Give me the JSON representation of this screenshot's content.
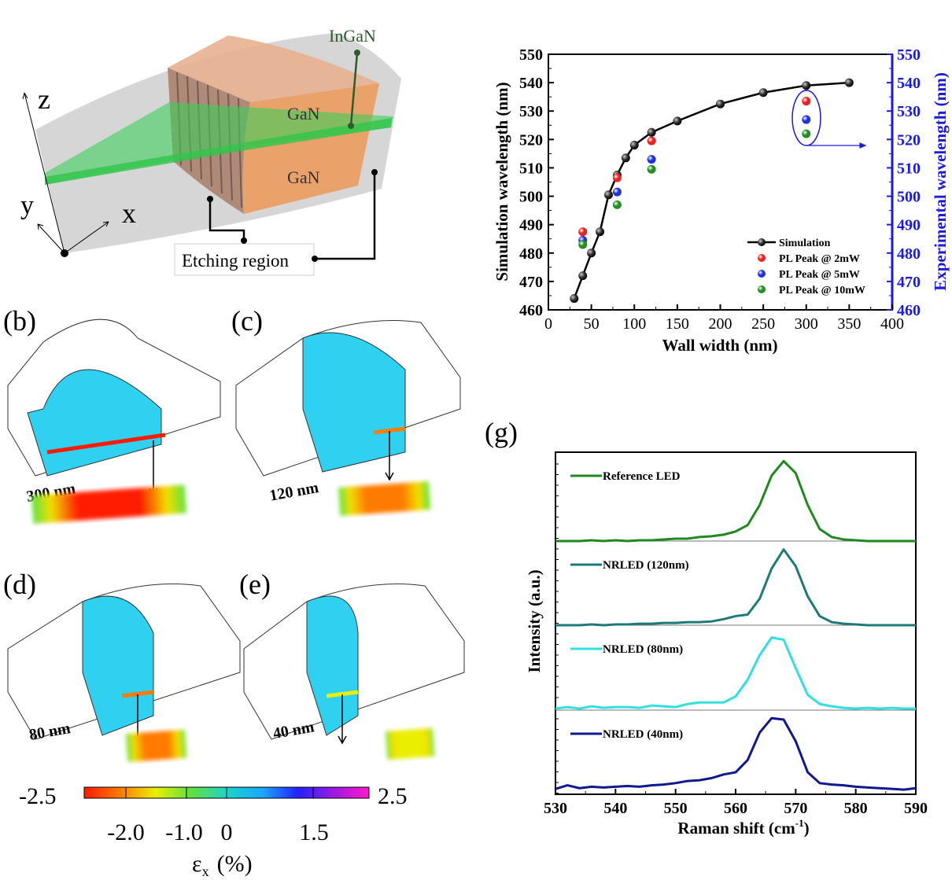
{
  "panel_a": {
    "labels": {
      "ingan": "InGaN",
      "gan_top": "GaN",
      "gan_bottom": "GaN",
      "etching": "Etching region",
      "axis_z": "z",
      "axis_y": "y",
      "axis_x": "x"
    },
    "colors": {
      "gan": "#e8a26a",
      "ingan": "#3ccf5a",
      "shell": "#c8c8c8"
    }
  },
  "panels_strain": [
    {
      "label": "(b)",
      "width": "300 nm",
      "strain_level": -2.3
    },
    {
      "label": "(c)",
      "width": "120 nm",
      "strain_level": -2.1
    },
    {
      "label": "(d)",
      "width": "80 nm",
      "strain_level": -1.9
    },
    {
      "label": "(e)",
      "width": "40 nm",
      "strain_level": -1.4
    }
  ],
  "colorbar": {
    "min_label": "-2.5",
    "max_label": "2.5",
    "ticks": [
      "-2.0",
      "-1.0",
      "0",
      "1.5"
    ],
    "title": "ε",
    "title_sub": "x",
    "title_unit": "(%)",
    "colors": [
      "#ff1a00",
      "#ff7a00",
      "#e8f000",
      "#60e040",
      "#1ad6c8",
      "#1aa8ff",
      "#2222ff",
      "#9a1ae0",
      "#ff1acc"
    ]
  },
  "chart_data": [
    {
      "type": "scatter",
      "panel_label": "",
      "xlabel": "Wall width (nm)",
      "ylabel": "Simulation wavelength (nm)",
      "y2label": "Experimental wavelength (nm)",
      "xlim": [
        0,
        400
      ],
      "ylim": [
        460,
        550
      ],
      "y2lim": [
        460,
        550
      ],
      "xticks": [
        "0",
        "50",
        "100",
        "150",
        "200",
        "250",
        "300",
        "350",
        "400"
      ],
      "yticks": [
        "460",
        "470",
        "480",
        "490",
        "500",
        "510",
        "520",
        "530",
        "540",
        "550"
      ],
      "grid": false,
      "legend_position": "bottom-right",
      "series": [
        {
          "name": "Simulation",
          "color": "#000000",
          "line": true,
          "x": [
            30,
            40,
            50,
            60,
            70,
            80,
            90,
            100,
            120,
            150,
            200,
            250,
            300,
            350
          ],
          "y": [
            464,
            472,
            480,
            487.5,
            500.5,
            507.5,
            513.5,
            518,
            522.5,
            526.5,
            532.5,
            536.5,
            539,
            540
          ]
        },
        {
          "name": "PL Peak @ 2mW",
          "color": "#ee2020",
          "line": false,
          "x": [
            40,
            80,
            120,
            300
          ],
          "y": [
            487.5,
            506.5,
            519.5,
            533.5
          ]
        },
        {
          "name": "PL Peak @ 5mW",
          "color": "#2030e0",
          "line": false,
          "x": [
            40,
            80,
            120,
            300
          ],
          "y": [
            484.5,
            501.5,
            513,
            527
          ]
        },
        {
          "name": "PL Peak @ 10mW",
          "color": "#209020",
          "line": false,
          "x": [
            40,
            80,
            120,
            300
          ],
          "y": [
            483,
            497,
            509.5,
            522
          ]
        }
      ]
    },
    {
      "type": "line",
      "panel_label": "(g)",
      "xlabel": "Raman shift (cm",
      "xlabel_sup": "-1",
      "xlabel_end": ")",
      "ylabel": "Intensity (a.u.)",
      "xlim": [
        530,
        590
      ],
      "xticks": [
        "530",
        "540",
        "550",
        "560",
        "570",
        "580",
        "590"
      ],
      "grid": false,
      "legend_position": "top-left of each stacked panel",
      "x": [
        530,
        532,
        534,
        536,
        538,
        540,
        542,
        544,
        546,
        548,
        550,
        552,
        554,
        556,
        558,
        560,
        562,
        564,
        566,
        568,
        570,
        572,
        574,
        576,
        578,
        580,
        582,
        584,
        586,
        588,
        590
      ],
      "series": [
        {
          "name": "Reference LED",
          "color": "#1e8a1e",
          "values": [
            0,
            0,
            0,
            0.01,
            0,
            0.01,
            0,
            0.01,
            0.01,
            0.02,
            0.03,
            0.03,
            0.05,
            0.06,
            0.08,
            0.12,
            0.2,
            0.45,
            0.82,
            1.0,
            0.85,
            0.45,
            0.15,
            0.05,
            0.02,
            0.01,
            0,
            0,
            0,
            0,
            0
          ]
        },
        {
          "name": "NRLED (120nm)",
          "color": "#1e7a78",
          "values": [
            0,
            0,
            0,
            0.01,
            0,
            0.01,
            0.01,
            0.02,
            0.02,
            0.03,
            0.03,
            0.04,
            0.04,
            0.05,
            0.08,
            0.12,
            0.14,
            0.35,
            0.75,
            1.0,
            0.78,
            0.38,
            0.12,
            0.04,
            0.02,
            0.01,
            0,
            0,
            0,
            0,
            0
          ]
        },
        {
          "name": "NRLED (80nm)",
          "color": "#30e0e0",
          "values": [
            0.02,
            0.04,
            0.02,
            0.05,
            0.03,
            0.04,
            0.04,
            0.03,
            0.06,
            0.05,
            0.04,
            0.08,
            0.1,
            0.1,
            0.1,
            0.18,
            0.4,
            0.72,
            0.95,
            0.92,
            0.55,
            0.2,
            0.08,
            0.05,
            0.03,
            0.02,
            0.03,
            0.02,
            0.03,
            0.02,
            0.02
          ]
        },
        {
          "name": "NRLED (40nm)",
          "color": "#101890",
          "values": [
            0.02,
            0.07,
            0.03,
            0.05,
            0.04,
            0.05,
            0.06,
            0.05,
            0.07,
            0.08,
            0.1,
            0.13,
            0.14,
            0.17,
            0.22,
            0.25,
            0.42,
            0.8,
            1.0,
            0.98,
            0.68,
            0.25,
            0.1,
            0.08,
            0.07,
            0.05,
            0.04,
            0.03,
            0.02,
            0.01,
            0.03
          ]
        }
      ]
    }
  ]
}
